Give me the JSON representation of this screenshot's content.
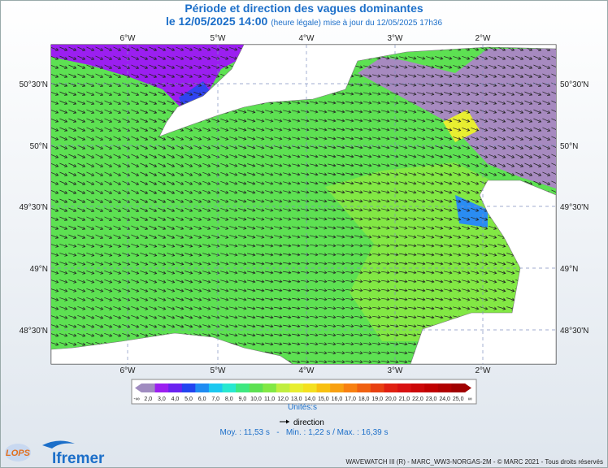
{
  "header": {
    "title": "Période et direction des vagues dominantes",
    "date": "le 12/05/2025 14:00",
    "update": "(heure légale) mise à jour du 12/05/2025 17h36"
  },
  "map": {
    "lon_labels": [
      "6°W",
      "5°W",
      "4°W",
      "3°W",
      "2°W"
    ],
    "lat_labels": [
      "50°30'N",
      "50°N",
      "49°30'N",
      "49°N",
      "48°30'N"
    ]
  },
  "legend": {
    "colorbar_labels": [
      "-∞",
      "2,0",
      "3,0",
      "4,0",
      "5,0",
      "6,0",
      "7,0",
      "8,0",
      "9,0",
      "10,0",
      "11,0",
      "12,0",
      "13,0",
      "14,0",
      "15,0",
      "16,0",
      "17,0",
      "18,0",
      "19,0",
      "20,0",
      "21,0",
      "22,0",
      "23,0",
      "24,0",
      "25,0",
      "∞"
    ],
    "unit": "Unités:s",
    "direction": "direction",
    "stats": "Moy. : 11,53 s   -   Min. : 1,22 s / Max. : 16,39 s"
  },
  "footer": {
    "logo_lops": "LOPS",
    "logo_ifremer": "Ifremer",
    "credits": "WAVEWATCH III (R) - MARC_WW3-NORGAS-2M - © MARC 2021 - Tous droits réservés"
  }
}
